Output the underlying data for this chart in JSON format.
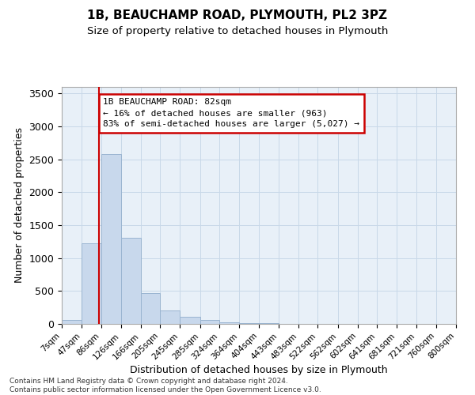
{
  "title": "1B, BEAUCHAMP ROAD, PLYMOUTH, PL2 3PZ",
  "subtitle": "Size of property relative to detached houses in Plymouth",
  "xlabel": "Distribution of detached houses by size in Plymouth",
  "ylabel": "Number of detached properties",
  "bar_color": "#c8d8ec",
  "bar_edge_color": "#9ab4d0",
  "grid_color": "#c8d8e8",
  "background_color": "#ffffff",
  "plot_bg_color": "#e8f0f8",
  "vline_x": 82,
  "vline_color": "#cc0000",
  "annotation_text": "1B BEAUCHAMP ROAD: 82sqm\n← 16% of detached houses are smaller (963)\n83% of semi-detached houses are larger (5,027) →",
  "annotation_box_color": "#cc0000",
  "footnote": "Contains HM Land Registry data © Crown copyright and database right 2024.\nContains public sector information licensed under the Open Government Licence v3.0.",
  "bin_edges": [
    7,
    47,
    86,
    126,
    166,
    205,
    245,
    285,
    324,
    364,
    404,
    443,
    483,
    522,
    562,
    602,
    641,
    681,
    721,
    760,
    800
  ],
  "bar_heights": [
    60,
    1220,
    2580,
    1310,
    470,
    200,
    110,
    55,
    30,
    10,
    10,
    5,
    5,
    3,
    2,
    2,
    2,
    2,
    2,
    2
  ],
  "ylim": [
    0,
    3600
  ],
  "yticks": [
    0,
    500,
    1000,
    1500,
    2000,
    2500,
    3000,
    3500
  ]
}
